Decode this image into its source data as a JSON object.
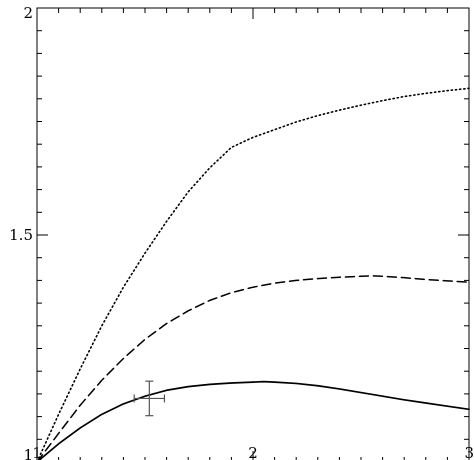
{
  "chart_data": {
    "type": "line",
    "title": "",
    "xlabel": "",
    "ylabel": "",
    "xlim": [
      1,
      3
    ],
    "ylim": [
      1,
      2
    ],
    "grid": false,
    "x_ticks": {
      "major": [
        1,
        2,
        3
      ],
      "minor_step": 0.1,
      "labels": [
        "1",
        "2",
        "3"
      ]
    },
    "y_ticks": {
      "major": [
        1,
        1.5,
        2
      ],
      "minor_step": 0.05,
      "labels": [
        "1",
        "1.5",
        "2"
      ]
    },
    "series": [
      {
        "style": "solid",
        "x": [
          1.0,
          1.1,
          1.2,
          1.3,
          1.4,
          1.5,
          1.6,
          1.7,
          1.8,
          1.9,
          2.0,
          2.05,
          2.1,
          2.2,
          2.3,
          2.4,
          2.5,
          2.6,
          2.7,
          2.8,
          2.9,
          3.0
        ],
        "y": [
          1.0,
          1.04,
          1.075,
          1.105,
          1.128,
          1.145,
          1.158,
          1.166,
          1.171,
          1.174,
          1.176,
          1.177,
          1.176,
          1.173,
          1.168,
          1.161,
          1.153,
          1.145,
          1.137,
          1.13,
          1.123,
          1.116
        ]
      },
      {
        "style": "dashed",
        "x": [
          1.0,
          1.1,
          1.2,
          1.3,
          1.4,
          1.5,
          1.6,
          1.7,
          1.8,
          1.9,
          2.0,
          2.1,
          2.2,
          2.3,
          2.4,
          2.5,
          2.55,
          2.6,
          2.7,
          2.8,
          2.9,
          3.0
        ],
        "y": [
          1.0,
          1.063,
          1.125,
          1.18,
          1.228,
          1.27,
          1.305,
          1.333,
          1.356,
          1.373,
          1.385,
          1.394,
          1.4,
          1.404,
          1.407,
          1.409,
          1.41,
          1.409,
          1.406,
          1.402,
          1.399,
          1.396
        ]
      },
      {
        "style": "dotted",
        "x": [
          1.0,
          1.1,
          1.2,
          1.3,
          1.4,
          1.5,
          1.6,
          1.7,
          1.8,
          1.9,
          2.0,
          2.1,
          2.2,
          2.3,
          2.4,
          2.5,
          2.6,
          2.7,
          2.8,
          2.9,
          3.0
        ],
        "y": [
          1.0,
          1.105,
          1.205,
          1.3,
          1.385,
          1.46,
          1.53,
          1.595,
          1.648,
          1.693,
          1.715,
          1.732,
          1.749,
          1.763,
          1.775,
          1.786,
          1.796,
          1.805,
          1.812,
          1.818,
          1.823
        ]
      }
    ],
    "error_point": {
      "x": 1.52,
      "y": 1.14,
      "x_err": 0.07,
      "y_err": 0.038
    }
  }
}
